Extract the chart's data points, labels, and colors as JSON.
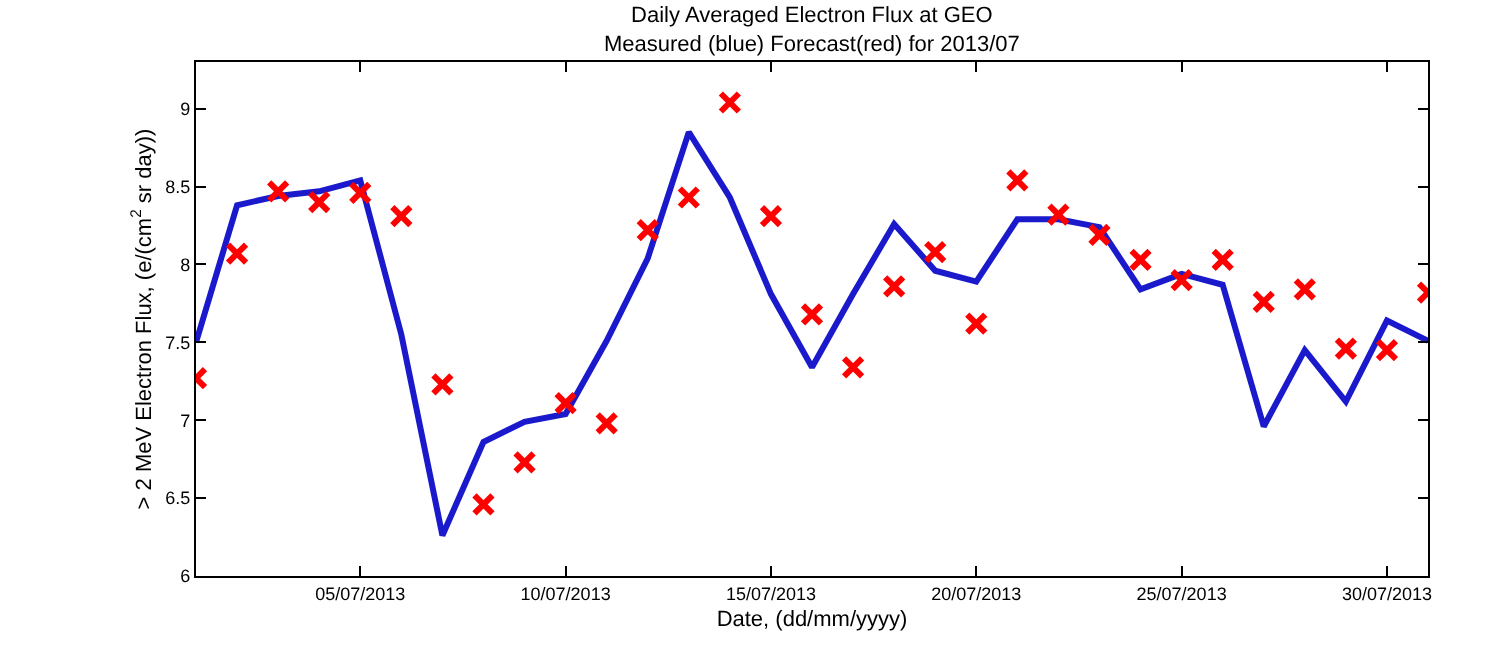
{
  "chart_data": {
    "type": "line",
    "title": "Daily Averaged Electron Flux at GEO",
    "subtitle": "Measured (blue) Forecast(red) for 2013/07",
    "xlabel": "Date, (dd/mm/yyyy)",
    "ylabel": "> 2 MeV Electron Flux, (e/(cm$^{2}$ sr day))",
    "x": [
      "2013-07-01",
      "2013-07-02",
      "2013-07-03",
      "2013-07-04",
      "2013-07-05",
      "2013-07-06",
      "2013-07-07",
      "2013-07-08",
      "2013-07-09",
      "2013-07-10",
      "2013-07-11",
      "2013-07-12",
      "2013-07-13",
      "2013-07-14",
      "2013-07-15",
      "2013-07-16",
      "2013-07-17",
      "2013-07-18",
      "2013-07-19",
      "2013-07-20",
      "2013-07-21",
      "2013-07-22",
      "2013-07-23",
      "2013-07-24",
      "2013-07-25",
      "2013-07-26",
      "2013-07-27",
      "2013-07-28",
      "2013-07-29",
      "2013-07-30",
      "2013-07-31"
    ],
    "series": [
      {
        "color": "#1a1acc",
        "marker": "none",
        "line_style": "solid",
        "values": [
          7.5,
          8.38,
          8.44,
          8.47,
          8.54,
          7.55,
          6.26,
          6.86,
          6.99,
          7.04,
          7.51,
          8.04,
          8.85,
          8.43,
          7.81,
          7.34,
          7.81,
          8.26,
          7.96,
          7.89,
          8.29,
          8.29,
          8.24,
          7.84,
          7.94,
          7.87,
          6.96,
          7.45,
          7.12,
          7.64,
          7.51
        ]
      },
      {
        "type": "scatter",
        "color": "#ff0000",
        "marker": "cross",
        "values": [
          7.27,
          8.07,
          8.47,
          8.4,
          8.46,
          8.31,
          7.23,
          6.46,
          6.73,
          7.11,
          6.98,
          8.22,
          8.43,
          9.04,
          8.31,
          7.68,
          7.34,
          7.86,
          8.08,
          7.62,
          8.54,
          8.32,
          8.19,
          8.03,
          7.9,
          8.03,
          7.76,
          7.84,
          7.46,
          7.45,
          7.82
        ]
      }
    ],
    "xlim": [
      "2013-07-01",
      "2013-07-31"
    ],
    "xticks": [
      {
        "value": "2013-07-05",
        "label": "05/07/2013"
      },
      {
        "value": "2013-07-10",
        "label": "10/07/2013"
      },
      {
        "value": "2013-07-15",
        "label": "15/07/2013"
      },
      {
        "value": "2013-07-20",
        "label": "20/07/2013"
      },
      {
        "value": "2013-07-25",
        "label": "25/07/2013"
      },
      {
        "value": "2013-07-30",
        "label": "30/07/2013"
      }
    ],
    "ylim": [
      6,
      9.3
    ],
    "yticks": [
      6,
      6.5,
      7,
      7.5,
      8,
      8.5,
      9
    ],
    "legend": false
  }
}
